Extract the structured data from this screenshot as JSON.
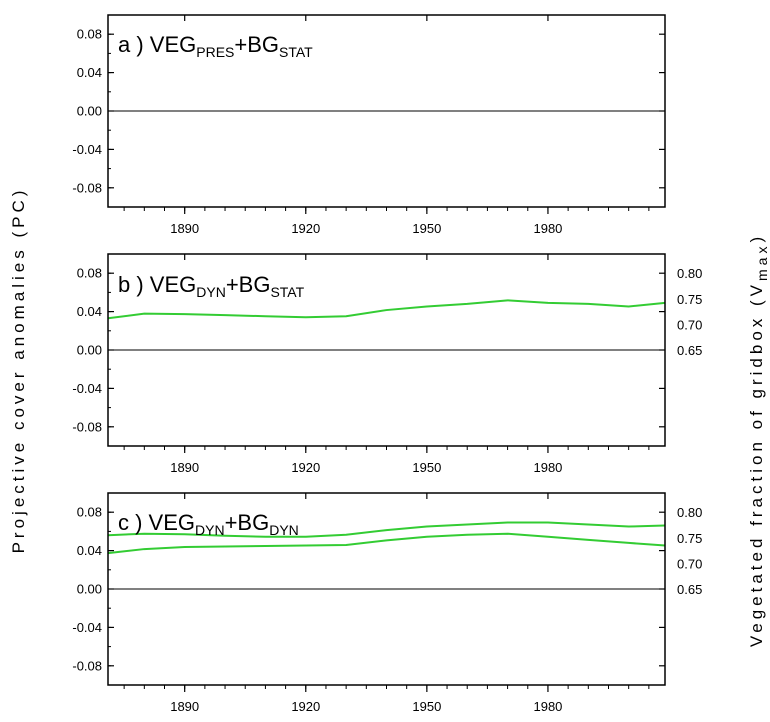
{
  "figure": {
    "ylabel_left": "Projective cover anomalies  (PC)",
    "ylabel_right_main": "Vegetated fraction of gridbox (V",
    "ylabel_right_sub": "max",
    "ylabel_right_close": ")"
  },
  "chart_data": [
    {
      "type": "bar",
      "panel": "a",
      "label_prefix": "a ) VEG",
      "label_sub1": "PRES",
      "label_mid": "+BG",
      "label_sub2": "STAT",
      "xlim": [
        1871,
        2009
      ],
      "ylim": [
        -0.1,
        0.1
      ],
      "yticks": [
        0.08,
        0.04,
        0.0,
        -0.04,
        -0.08
      ],
      "ytick_labels": [
        "0.08",
        "0.04",
        "0.00",
        "-0.04",
        "-0.08"
      ],
      "xticks": [
        1890,
        1920,
        1950,
        1980
      ],
      "xtick_labels": [
        "1890",
        "1920",
        "1950",
        "1980"
      ],
      "bar_colors": {
        "positive": "#0000ff",
        "negative": "#ff0000"
      },
      "has_right_axis": false
    },
    {
      "type": "bar",
      "panel": "b",
      "label_prefix": "b ) VEG",
      "label_sub1": "DYN",
      "label_mid": "+BG",
      "label_sub2": "STAT",
      "xlim": [
        1871,
        2009
      ],
      "ylim": [
        -0.1,
        0.1
      ],
      "yticks": [
        0.08,
        0.04,
        0.0,
        -0.04,
        -0.08
      ],
      "ytick_labels": [
        "0.08",
        "0.04",
        "0.00",
        "-0.04",
        "-0.08"
      ],
      "xticks": [
        1890,
        1920,
        1950,
        1980
      ],
      "xtick_labels": [
        "1890",
        "1920",
        "1950",
        "1980"
      ],
      "bar_colors": {
        "positive": "#0000ff",
        "negative": "#ff0000"
      },
      "has_right_axis": true,
      "right_yticks": [
        0.8,
        0.75,
        0.7,
        0.65
      ],
      "right_ytick_labels": [
        "0.80",
        "0.75",
        "0.70",
        "0.65"
      ],
      "right_ylim": [
        0.65,
        0.8
      ],
      "vegetated_fraction": {
        "color": "#33cc33",
        "x": [
          1871,
          1880,
          1890,
          1900,
          1910,
          1920,
          1930,
          1940,
          1950,
          1960,
          1970,
          1980,
          1990,
          2000,
          2009
        ],
        "values": [
          0.712,
          0.721,
          0.72,
          0.718,
          0.716,
          0.714,
          0.716,
          0.728,
          0.735,
          0.74,
          0.747,
          0.742,
          0.74,
          0.735,
          0.742
        ]
      }
    },
    {
      "type": "bar",
      "panel": "c",
      "label_prefix": "c ) VEG",
      "label_sub1": "DYN",
      "label_mid": "+BG",
      "label_sub2": "DYN",
      "xlim": [
        1871,
        2009
      ],
      "ylim": [
        -0.1,
        0.1
      ],
      "yticks": [
        0.08,
        0.04,
        0.0,
        -0.04,
        -0.08
      ],
      "ytick_labels": [
        "0.08",
        "0.04",
        "0.00",
        "-0.04",
        "-0.08"
      ],
      "xticks": [
        1890,
        1920,
        1950,
        1980
      ],
      "xtick_labels": [
        "1890",
        "1920",
        "1950",
        "1980"
      ],
      "bar_colors": {
        "positive": "#0000ff",
        "negative": "#ff0000"
      },
      "has_right_axis": true,
      "right_yticks": [
        0.8,
        0.75,
        0.7,
        0.65
      ],
      "right_ytick_labels": [
        "0.80",
        "0.75",
        "0.70",
        "0.65"
      ],
      "right_ylim": [
        0.65,
        0.8
      ],
      "vegetated_fraction_series": [
        {
          "color": "#33cc33",
          "x": [
            1871,
            1880,
            1890,
            1900,
            1910,
            1920,
            1930,
            1940,
            1950,
            1960,
            1970,
            1980,
            1990,
            2000,
            2009
          ],
          "values": [
            0.755,
            0.758,
            0.757,
            0.754,
            0.752,
            0.752,
            0.756,
            0.765,
            0.772,
            0.776,
            0.78,
            0.78,
            0.776,
            0.772,
            0.774
          ]
        },
        {
          "color": "#33cc33",
          "x": [
            1871,
            1880,
            1890,
            1900,
            1910,
            1920,
            1930,
            1940,
            1950,
            1960,
            1970,
            1980,
            1990,
            2000,
            2009
          ],
          "values": [
            0.72,
            0.728,
            0.732,
            0.733,
            0.734,
            0.735,
            0.736,
            0.745,
            0.752,
            0.756,
            0.758,
            0.752,
            0.746,
            0.74,
            0.735
          ]
        }
      ]
    }
  ]
}
